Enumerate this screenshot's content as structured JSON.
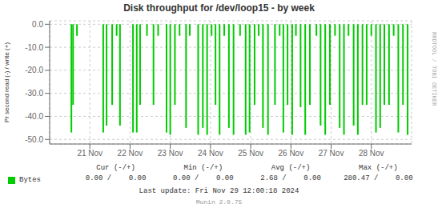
{
  "chart_data": {
    "type": "bar",
    "title": "Disk throughput for /dev/loop15 - by week",
    "ylabel": "Pr second read (-) / write (+)",
    "x": [
      1732107600,
      1732111200,
      1732119600,
      1732176000,
      1732183200,
      1732195200,
      1732204800,
      1732212000,
      1732240000,
      1732248000,
      1732255200,
      1732270000,
      1732284000,
      1732294000,
      1732312000,
      1732320000,
      1732330000,
      1732340000,
      1732354000,
      1732362000,
      1732380000,
      1732390000,
      1732399200,
      1732408800,
      1732417200,
      1732426000,
      1732436000,
      1732446000,
      1732456000,
      1732470000,
      1732482000,
      1732490400,
      1732501200,
      1732510000,
      1732519200,
      1732530000,
      1732545000,
      1732555000,
      1732563000,
      1732572000,
      1732582000,
      1732590000,
      1732600000,
      1732610000,
      1732620000,
      1732634000,
      1732643000,
      1732653000,
      1732663000,
      1732674000,
      1732684000,
      1732693200,
      1732703000,
      1732714000,
      1732723000,
      1732733000,
      1732742000,
      1732752000,
      1732762000,
      1732771000,
      1732780000,
      1732790000,
      1732800000,
      1732810000,
      1732820000,
      1732830000
    ],
    "series": [
      {
        "name": "Bytes",
        "color": "#00cc00",
        "values": [
          -47.0,
          -35.0,
          -5.0,
          -47.0,
          -44.0,
          -35.0,
          -5.0,
          -44.0,
          -47.0,
          -47.0,
          -35.0,
          -5.0,
          -35.0,
          -5.0,
          -47.0,
          -48.0,
          -35.0,
          -5.0,
          -45.0,
          -5.0,
          -48.0,
          -45.0,
          -48.0,
          -5.0,
          -35.0,
          -48.0,
          -5.0,
          -45.0,
          -48.0,
          -5.0,
          -48.0,
          -47.0,
          -35.0,
          -5.0,
          -45.0,
          -48.0,
          -35.0,
          -5.0,
          -47.0,
          -35.0,
          -48.0,
          -5.0,
          -36.0,
          -48.0,
          -35.0,
          -5.0,
          -44.0,
          -48.0,
          -35.0,
          -5.0,
          -45.0,
          -48.0,
          -5.0,
          -44.0,
          -48.0,
          -35.0,
          -35.0,
          -5.0,
          -47.0,
          -45.0,
          -35.0,
          -35.0,
          -5.0,
          -47.0,
          -35.0,
          -48.0
        ]
      }
    ],
    "xlim": [
      1732060800,
      1732838400
    ],
    "xticks": [
      {
        "value": 1732147200,
        "label": "21 Nov"
      },
      {
        "value": 1732233600,
        "label": "22 Nov"
      },
      {
        "value": 1732320000,
        "label": "23 Nov"
      },
      {
        "value": 1732406400,
        "label": "24 Nov"
      },
      {
        "value": 1732492800,
        "label": "25 Nov"
      },
      {
        "value": 1732579200,
        "label": "26 Nov"
      },
      {
        "value": 1732665600,
        "label": "27 Nov"
      },
      {
        "value": 1732752000,
        "label": "28 Nov"
      }
    ],
    "ylim": [
      -52,
      1.5
    ],
    "yticks": [
      {
        "value": 0.0,
        "label": "0.0"
      },
      {
        "value": -10.0,
        "label": "-10.0"
      },
      {
        "value": -20.0,
        "label": "-20.0"
      },
      {
        "value": -30.0,
        "label": "-30.0"
      },
      {
        "value": -40.0,
        "label": "-40.0"
      },
      {
        "value": -50.0,
        "label": "-50.0"
      }
    ],
    "grid": true,
    "annotations": [
      "Cur (-/+)",
      "Min (-/+)",
      "Avg (-/+)",
      "Max (-/+)",
      "0.00 /    0.00",
      "0.00 /    0.00",
      "2.68 /    0.00",
      "280.47 /    0.00",
      "Last update: Fri Nov 29 12:00:18 2024",
      "Munin 2.0.75",
      "RRDTOOL / TOBI OETIKER"
    ]
  }
}
